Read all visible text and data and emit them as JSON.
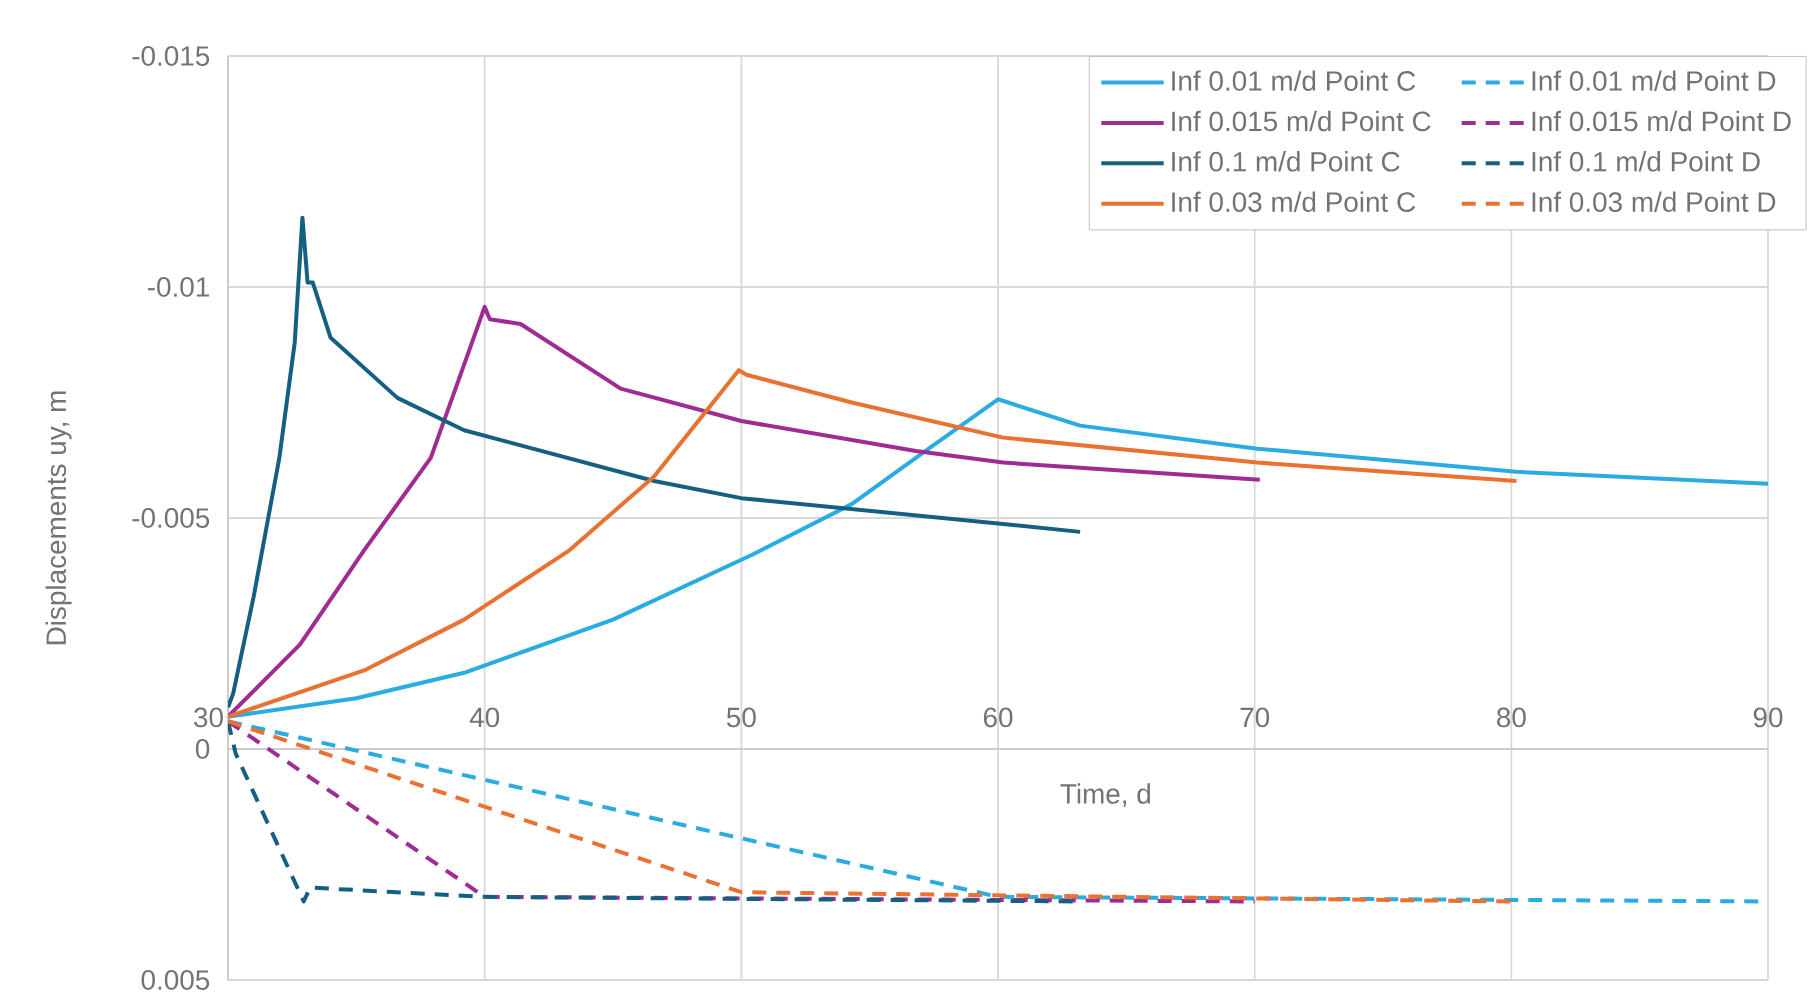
{
  "chart_data": {
    "type": "line",
    "xlabel": "Time, d",
    "ylabel": "Displacements uy, m",
    "xlim": [
      30,
      90
    ],
    "xticks": [
      30,
      40,
      50,
      60,
      70,
      80,
      90
    ],
    "ylim": [
      0.005,
      -0.015
    ],
    "yticks": [
      -0.015,
      -0.01,
      -0.005,
      0,
      0.005
    ],
    "grid": true,
    "legend": "top right",
    "marker": "none",
    "series": [
      {
        "name": "Inf 0.01 m/d Point C",
        "color": "#2AACE2",
        "line_style": "solid",
        "x": [
          30,
          35,
          39.2,
          45,
          50.4,
          54.3,
          57.3,
          60,
          63.2,
          70.1,
          80.2,
          90
        ],
        "values": [
          -0.0007,
          -0.0011,
          -0.00165,
          -0.0028,
          -0.0042,
          -0.0053,
          -0.0065,
          -0.00757,
          -0.007,
          -0.0065,
          -0.006,
          -0.00574
        ]
      },
      {
        "name": "Inf 0.01 m/d Point D",
        "color": "#2AACE2",
        "line_style": "dashed",
        "x": [
          30,
          60,
          90
        ],
        "values": [
          -0.0006,
          0.0032,
          0.0033
        ]
      },
      {
        "name": "Inf 0.015 m/d Point C",
        "color": "#A02B93",
        "line_style": "solid",
        "x": [
          30,
          32.8,
          35.3,
          37.9,
          39.7,
          40,
          40.2,
          41.4,
          45.3,
          50,
          56.8,
          60.2,
          70.2
        ],
        "values": [
          -0.0007,
          -0.00226,
          -0.0043,
          -0.0063,
          -0.0091,
          -0.00957,
          -0.0093,
          -0.0092,
          -0.0078,
          -0.0071,
          -0.00645,
          -0.0062,
          -0.00583
        ]
      },
      {
        "name": "Inf 0.015 m/d Point D",
        "color": "#A02B93",
        "line_style": "dashed",
        "x": [
          30,
          40,
          70
        ],
        "values": [
          -0.0006,
          0.0032,
          0.0033
        ]
      },
      {
        "name": "Inf 0.1 m/d Point C",
        "color": "#156082",
        "line_style": "solid",
        "x": [
          30,
          30.2,
          31,
          32,
          32.6,
          32.9,
          33.1,
          33.3,
          34,
          36.6,
          39.2,
          46.6,
          50,
          60.2,
          63.2
        ],
        "values": [
          -0.0009,
          -0.0012,
          -0.0033,
          -0.0063,
          -0.0088,
          -0.0115,
          -0.0101,
          -0.0101,
          -0.0089,
          -0.0076,
          -0.0069,
          -0.0058,
          -0.00543,
          -0.00487,
          -0.0047
        ]
      },
      {
        "name": "Inf 0.1 m/d Point D",
        "color": "#156082",
        "line_style": "dashed",
        "x": [
          30,
          30.3,
          32.95,
          33.2,
          40,
          63.2
        ],
        "values": [
          -0.0006,
          0.0001,
          0.0033,
          0.003,
          0.0032,
          0.0033
        ]
      },
      {
        "name": "Inf 0.03 m/d Point C",
        "color": "#E97132",
        "line_style": "solid",
        "x": [
          30,
          35.3,
          39.2,
          43.3,
          46.6,
          49.9,
          50.2,
          54.3,
          60.2,
          70.1,
          80.2
        ],
        "values": [
          -0.0007,
          -0.0017,
          -0.0028,
          -0.0043,
          -0.0059,
          -0.0082,
          -0.0081,
          -0.0075,
          -0.00674,
          -0.0062,
          -0.0058
        ]
      },
      {
        "name": "Inf 0.03 m/d Point D",
        "color": "#E97132",
        "line_style": "dashed",
        "x": [
          30,
          50,
          80
        ],
        "values": [
          -0.0006,
          0.0031,
          0.0033
        ]
      }
    ]
  }
}
